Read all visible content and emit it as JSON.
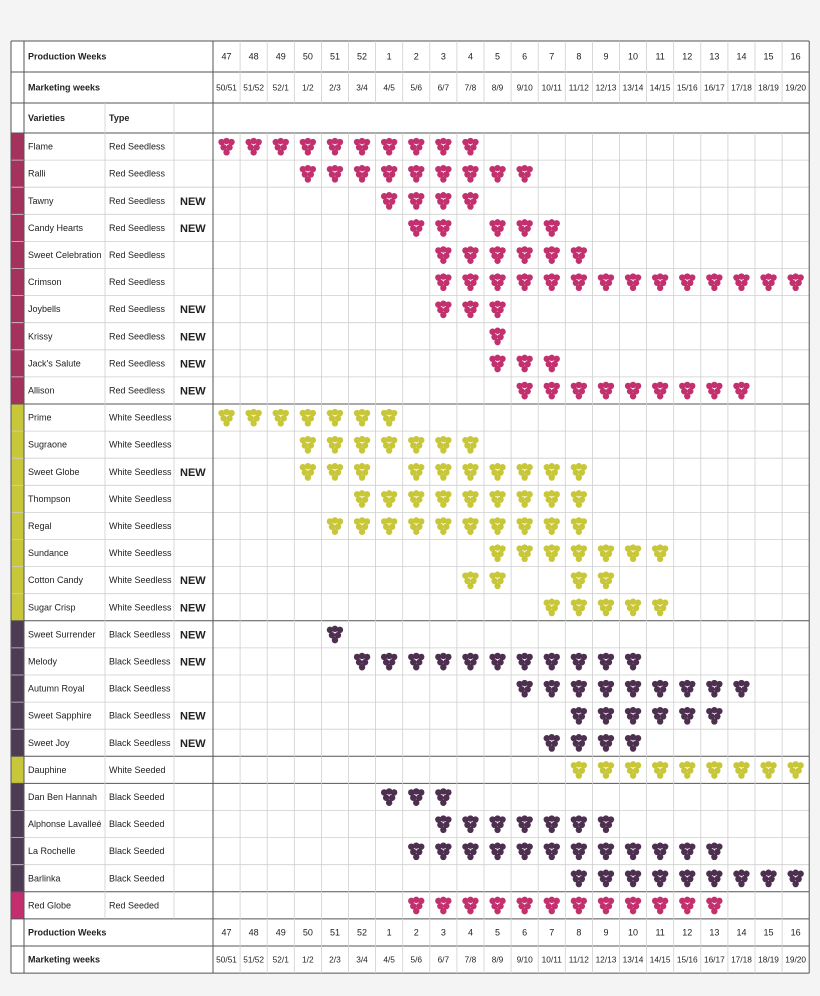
{
  "headers": {
    "production_weeks": "Production Weeks",
    "marketing_weeks": "Marketing weeks",
    "varieties": "Varieties",
    "type": "Type"
  },
  "production_weeks": [
    "47",
    "48",
    "49",
    "50",
    "51",
    "52",
    "1",
    "2",
    "3",
    "4",
    "5",
    "6",
    "7",
    "8",
    "9",
    "10",
    "11",
    "12",
    "13",
    "14",
    "15",
    "16"
  ],
  "marketing_weeks": [
    "50/51",
    "51/52",
    "52/1",
    "1/2",
    "2/3",
    "3/4",
    "4/5",
    "5/6",
    "6/7",
    "7/8",
    "8/9",
    "9/10",
    "10/11",
    "11/12",
    "12/13",
    "13/14",
    "14/15",
    "15/16",
    "16/17",
    "17/18",
    "18/19",
    "19/20"
  ],
  "colors": {
    "red": "#c2306e",
    "white": "#c8c73a",
    "black": "#4d2f4f",
    "red_bar": "#a5325d",
    "white_bar": "#c8c73a",
    "black_bar": "#4d3a53",
    "redglobe_bar": "#c52e6e",
    "grid": "#cfcfcf",
    "border": "#555555"
  },
  "new_label": "NEW",
  "grape_icon": "grape-cluster-icon",
  "rows": [
    {
      "name": "Flame",
      "type": "Red Seedless",
      "color": "red",
      "new": false,
      "weeks": [
        "47",
        "48",
        "49",
        "50",
        "51",
        "52",
        "1",
        "2",
        "3",
        "4"
      ]
    },
    {
      "name": "Ralli",
      "type": "Red Seedless",
      "color": "red",
      "new": false,
      "weeks": [
        "50",
        "51",
        "52",
        "1",
        "2",
        "3",
        "4",
        "5",
        "6"
      ]
    },
    {
      "name": "Tawny",
      "type": "Red Seedless",
      "color": "red",
      "new": true,
      "weeks": [
        "1",
        "2",
        "3",
        "4"
      ]
    },
    {
      "name": "Candy Hearts",
      "type": "Red Seedless",
      "color": "red",
      "new": true,
      "weeks": [
        "2",
        "3",
        "5",
        "6",
        "7"
      ]
    },
    {
      "name": "Sweet Celebration",
      "type": "Red Seedless",
      "color": "red",
      "new": false,
      "weeks": [
        "3",
        "4",
        "5",
        "6",
        "7",
        "8"
      ]
    },
    {
      "name": "Crimson",
      "type": "Red Seedless",
      "color": "red",
      "new": false,
      "weeks": [
        "3",
        "4",
        "5",
        "6",
        "7",
        "8",
        "9",
        "10",
        "11",
        "12",
        "13",
        "14",
        "15",
        "16"
      ]
    },
    {
      "name": "Joybells",
      "type": "Red Seedless",
      "color": "red",
      "new": true,
      "weeks": [
        "3",
        "4",
        "5"
      ]
    },
    {
      "name": "Krissy",
      "type": "Red Seedless",
      "color": "red",
      "new": true,
      "weeks": [
        "5"
      ]
    },
    {
      "name": "Jack's Salute",
      "type": "Red Seedless",
      "color": "red",
      "new": true,
      "weeks": [
        "5",
        "6",
        "7"
      ]
    },
    {
      "name": "Allison",
      "type": "Red Seedless",
      "color": "red",
      "new": true,
      "weeks": [
        "6",
        "7",
        "8",
        "9",
        "10",
        "11",
        "12",
        "13",
        "14"
      ]
    },
    {
      "name": "Prime",
      "type": "White Seedless",
      "color": "white",
      "new": false,
      "weeks": [
        "47",
        "48",
        "49",
        "50",
        "51",
        "52",
        "1"
      ]
    },
    {
      "name": "Sugraone",
      "type": "White Seedless",
      "color": "white",
      "new": false,
      "weeks": [
        "50",
        "51",
        "52",
        "1",
        "2",
        "3",
        "4"
      ]
    },
    {
      "name": "Sweet Globe",
      "type": "White Seedless",
      "color": "white",
      "new": true,
      "weeks": [
        "50",
        "51",
        "52",
        "2",
        "3",
        "4",
        "5",
        "6",
        "7",
        "8"
      ]
    },
    {
      "name": "Thompson",
      "type": "White Seedless",
      "color": "white",
      "new": false,
      "weeks": [
        "52",
        "1",
        "2",
        "3",
        "4",
        "5",
        "6",
        "7",
        "8"
      ]
    },
    {
      "name": "Regal",
      "type": "White Seedless",
      "color": "white",
      "new": false,
      "weeks": [
        "51",
        "52",
        "1",
        "2",
        "3",
        "4",
        "5",
        "6",
        "7",
        "8"
      ]
    },
    {
      "name": "Sundance",
      "type": "White Seedless",
      "color": "white",
      "new": false,
      "weeks": [
        "5",
        "6",
        "7",
        "8",
        "9",
        "10",
        "11"
      ]
    },
    {
      "name": "Cotton Candy",
      "type": "White Seedless",
      "color": "white",
      "new": true,
      "weeks": [
        "4",
        "5",
        "8",
        "9"
      ]
    },
    {
      "name": "Sugar Crisp",
      "type": "White Seedless",
      "color": "white",
      "new": true,
      "weeks": [
        "7",
        "8",
        "9",
        "10",
        "11"
      ]
    },
    {
      "name": "Sweet Surrender",
      "type": "Black Seedless",
      "color": "black",
      "new": true,
      "weeks": [
        "51"
      ]
    },
    {
      "name": "Melody",
      "type": "Black Seedless",
      "color": "black",
      "new": true,
      "weeks": [
        "52",
        "1",
        "2",
        "3",
        "4",
        "5",
        "6",
        "7",
        "8",
        "9",
        "10"
      ]
    },
    {
      "name": "Autumn Royal",
      "type": "Black Seedless",
      "color": "black",
      "new": false,
      "weeks": [
        "6",
        "7",
        "8",
        "9",
        "10",
        "11",
        "12",
        "13",
        "14"
      ]
    },
    {
      "name": "Sweet Sapphire",
      "type": "Black Seedless",
      "color": "black",
      "new": true,
      "weeks": [
        "8",
        "9",
        "10",
        "11",
        "12",
        "13"
      ]
    },
    {
      "name": "Sweet Joy",
      "type": "Black Seedless",
      "color": "black",
      "new": true,
      "weeks": [
        "7",
        "8",
        "9",
        "10"
      ]
    },
    {
      "name": "Dauphine",
      "type": "White Seeded",
      "color": "white",
      "new": false,
      "weeks": [
        "8",
        "9",
        "10",
        "11",
        "12",
        "13",
        "14",
        "15",
        "16"
      ]
    },
    {
      "name": "Dan Ben Hannah",
      "type": "Black Seeded",
      "color": "black",
      "new": false,
      "weeks": [
        "1",
        "2",
        "3"
      ]
    },
    {
      "name": "Alphonse Lavalleé",
      "type": "Black Seeded",
      "color": "black",
      "new": false,
      "weeks": [
        "3",
        "4",
        "5",
        "6",
        "7",
        "8",
        "9"
      ]
    },
    {
      "name": "La Rochelle",
      "type": "Black Seeded",
      "color": "black",
      "new": false,
      "weeks": [
        "2",
        "3",
        "4",
        "5",
        "6",
        "7",
        "8",
        "9",
        "10",
        "11",
        "12",
        "13"
      ]
    },
    {
      "name": "Barlinka",
      "type": "Black Seeded",
      "color": "black",
      "new": false,
      "weeks": [
        "8",
        "9",
        "10",
        "11",
        "12",
        "13",
        "14",
        "15",
        "16"
      ]
    },
    {
      "name": "Red Globe",
      "type": "Red Seeded",
      "color": "redglobe",
      "new": false,
      "weeks": [
        "2",
        "3",
        "4",
        "5",
        "6",
        "7",
        "8",
        "9",
        "10",
        "11",
        "12",
        "13"
      ]
    }
  ]
}
